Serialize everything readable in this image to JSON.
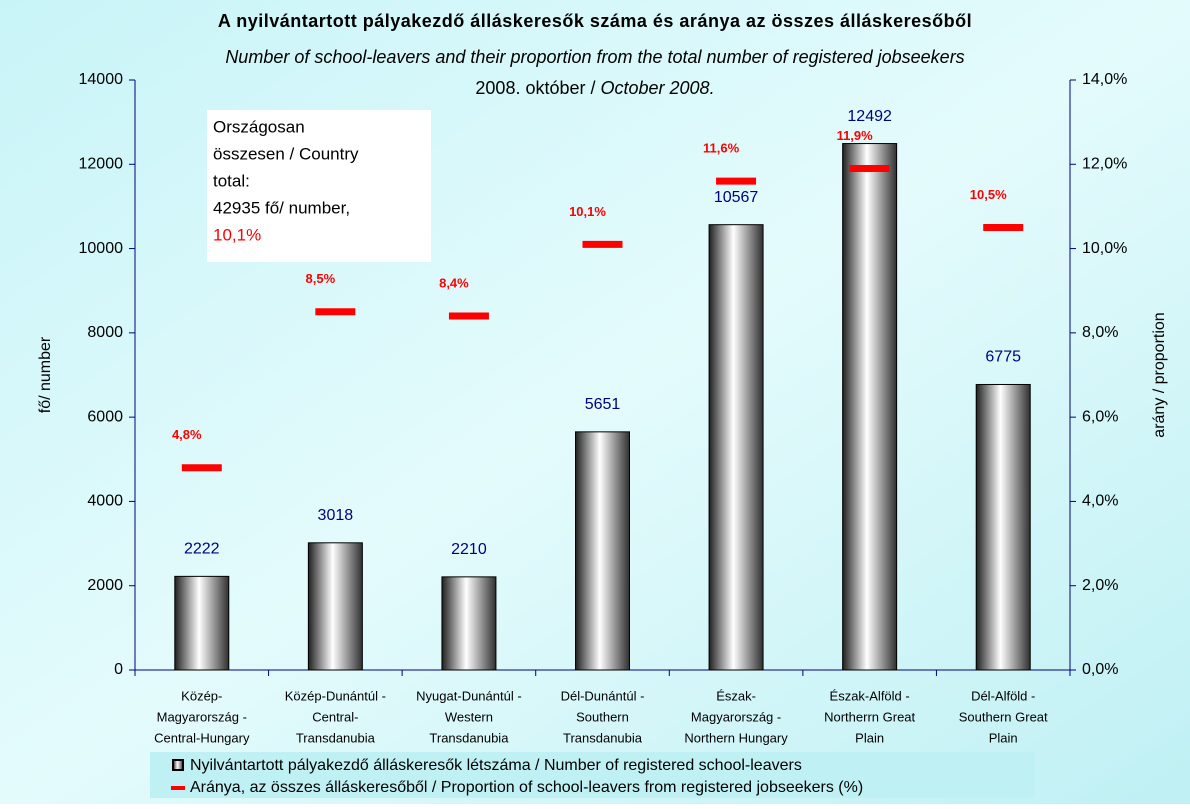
{
  "chart_data": {
    "type": "bar",
    "title": "A nyilvántartott pályakezdő álláskeresők száma és aránya az összes álláskeresőből",
    "subtitle": "Number of school-leavers and their proportion from the total number of registered jobseekers",
    "date": [
      "2008. október / ",
      "October 2008."
    ],
    "y_label": "fő/ number",
    "y2_label": "arány / proportion",
    "categories": [
      [
        "Közép-",
        "Magyarország -",
        "Central-Hungary"
      ],
      [
        "Közép-Dunántúl -",
        "Central-",
        "Transdanubia"
      ],
      [
        "Nyugat-Dunántúl -",
        "Western",
        "Transdanubia"
      ],
      [
        "Dél-Dunántúl -",
        "Southern",
        "Transdanubia"
      ],
      [
        "Észak-",
        "Magyarország -",
        "Northern Hungary"
      ],
      [
        "Észak-Alföld -",
        "Northerrn Great",
        "Plain"
      ],
      [
        "Dél-Alföld -",
        "Southern Great",
        "Plain"
      ]
    ],
    "series": [
      {
        "name": "Nyilvántartott pályakezdő álláskeresők létszáma / Number of registered school-leavers",
        "color": "#c0c0c0",
        "values": [
          2222,
          3018,
          2210,
          5651,
          10567,
          12492,
          6775
        ]
      },
      {
        "name": "Aránya, az összes álláskeresőből / Proportion of school-leavers from registered jobseekers (%)",
        "color": "#ff0000",
        "axis": "y2",
        "values": [
          4.8,
          8.5,
          8.4,
          10.1,
          11.6,
          11.9,
          10.5
        ],
        "value_labels": [
          "4,8%",
          "8,5%",
          "8,4%",
          "10,1%",
          "11,6%",
          "11,9%",
          "10,5%"
        ]
      }
    ],
    "ylim": [
      0,
      14000
    ],
    "yticks": [
      0,
      2000,
      4000,
      6000,
      8000,
      10000,
      12000,
      14000
    ],
    "y2lim": [
      0,
      14
    ],
    "y2ticks": [
      {
        "value": 0,
        "label": "0,0%"
      },
      {
        "value": 2,
        "label": "2,0%"
      },
      {
        "value": 4,
        "label": "4,0%"
      },
      {
        "value": 6,
        "label": "6,0%"
      },
      {
        "value": 8,
        "label": "8,0%"
      },
      {
        "value": 10,
        "label": "10,0%"
      },
      {
        "value": 12,
        "label": "12,0%"
      },
      {
        "value": 14,
        "label": "14,0%"
      }
    ],
    "annotation": [
      "Országosan",
      "összesen / Country",
      "total:",
      "42935 fő/ number,",
      "10,1%"
    ]
  }
}
